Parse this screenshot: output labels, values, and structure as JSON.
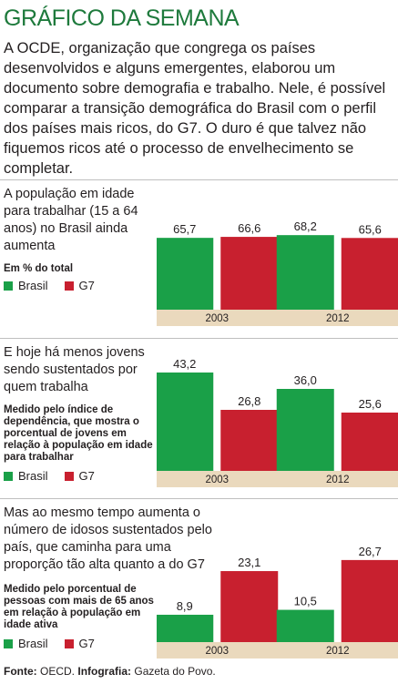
{
  "title": "GRÁFICO DA SEMANA",
  "intro": "A OCDE, organização que congrega os países desenvolvidos e alguns emergentes, elaborou um documento sobre demografia e trabalho. Nele, é possível comparar a transição demográfica do Brasil com o perfil dos países mais ricos, do G7. O duro é que talvez não fiquemos ricos até o processo de envelhecimento se completar.",
  "colors": {
    "brasil": "#1aa048",
    "g7": "#c8202f",
    "axis_band": "#ead9bd",
    "title": "#1e7a3c"
  },
  "legend": {
    "brasil": "Brasil",
    "g7": "G7"
  },
  "source": {
    "label1": "Fonte:",
    "text1": "OECD.",
    "label2": "Infografia:",
    "text2": "Gazeta do Povo."
  },
  "panels": [
    {
      "description": "A população em idade para trabalhar (15 a 64 anos) no Brasil ainda aumenta",
      "note": "Em % do total"
    },
    {
      "description": "E hoje há menos jovens sendo sustentados por quem trabalha",
      "note": "Medido pelo índice de dependência, que mostra o porcentual de jovens em relação à população em idade para trabalhar"
    },
    {
      "description": "Mas ao mesmo tempo aumenta o número de idosos sustentados pelo país, que caminha para uma proporção tão alta quanto a do G7",
      "note": "Medido pelo porcentual de pessoas com mais de 65 anos em relação à população em idade ativa"
    }
  ],
  "chart_data": [
    {
      "type": "bar",
      "categories": [
        "2003",
        "2012"
      ],
      "series": [
        {
          "name": "Brasil",
          "values": [
            65.7,
            68.2
          ],
          "labels": [
            "65,7",
            "68,2"
          ]
        },
        {
          "name": "G7",
          "values": [
            66.6,
            65.6
          ],
          "labels": [
            "66,6",
            "65,6"
          ]
        }
      ],
      "ylim": [
        0,
        90
      ],
      "grid": false
    },
    {
      "type": "bar",
      "categories": [
        "2003",
        "2012"
      ],
      "series": [
        {
          "name": "Brasil",
          "values": [
            43.2,
            36.0
          ],
          "labels": [
            "43,2",
            "36,0"
          ]
        },
        {
          "name": "G7",
          "values": [
            26.8,
            25.6
          ],
          "labels": [
            "26,8",
            "25,6"
          ]
        }
      ],
      "ylim": [
        0,
        43.2
      ],
      "grid": false
    },
    {
      "type": "bar",
      "categories": [
        "2003",
        "2012"
      ],
      "series": [
        {
          "name": "Brasil",
          "values": [
            8.9,
            10.5
          ],
          "labels": [
            "8,9",
            "10,5"
          ]
        },
        {
          "name": "G7",
          "values": [
            23.1,
            26.7
          ],
          "labels": [
            "23,1",
            "26,7"
          ]
        }
      ],
      "ylim": [
        0,
        32
      ],
      "grid": false
    }
  ]
}
